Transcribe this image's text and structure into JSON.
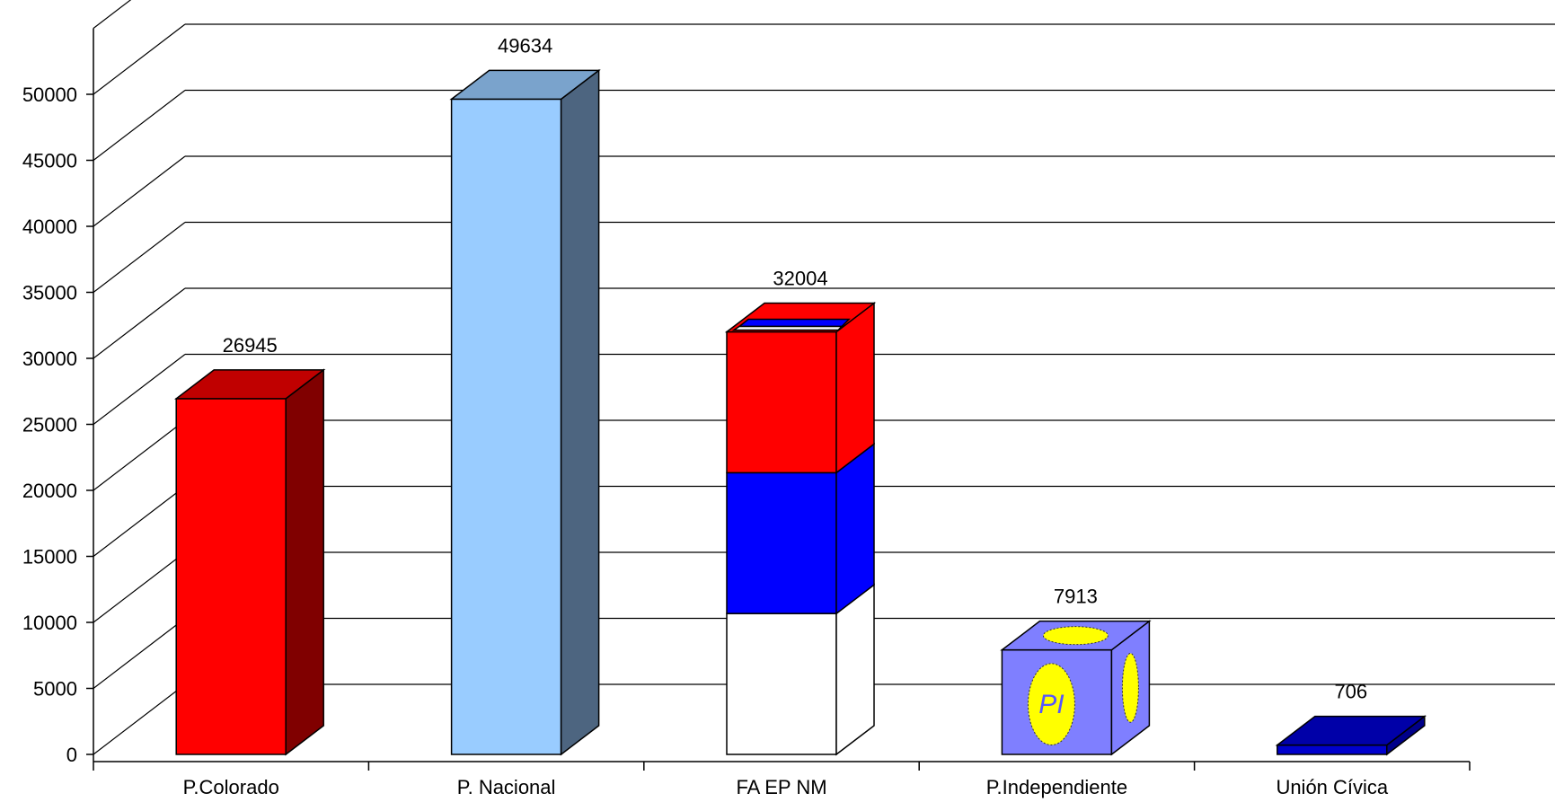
{
  "chart_data": {
    "type": "bar",
    "title": "",
    "xlabel": "",
    "ylabel": "",
    "ylim": [
      0,
      55000
    ],
    "y_ticks": [
      0,
      5000,
      10000,
      15000,
      20000,
      25000,
      30000,
      35000,
      40000,
      45000,
      50000
    ],
    "grid": true,
    "legend": "none",
    "style": "3d-column",
    "categories": [
      "P.Colorado",
      "P. Nacional",
      "FA EP NM",
      "P.Independiente",
      "Unión Cívica"
    ],
    "values": [
      26945,
      49634,
      32004,
      7913,
      706
    ],
    "data_labels": [
      "26945",
      "49634",
      "32004",
      "7913",
      "706"
    ],
    "colors": {
      "P.Colorado": {
        "front": "#ff0000",
        "side": "#800000",
        "top": "#c00000"
      },
      "P. Nacional": {
        "front": "#99ccff",
        "side": "#4d6580",
        "top": "#7aa3cc"
      },
      "FA EP NM": {
        "bands": [
          "#ffffff",
          "#0000ff",
          "#ff0000"
        ]
      },
      "P.Independiente": {
        "front": "#7f7fff",
        "emblem": "#ffff00",
        "emblem_text": "PI"
      },
      "Unión Cívica": {
        "front": "#0000cc",
        "side": "#00008a",
        "top": "#0000a8"
      }
    }
  }
}
